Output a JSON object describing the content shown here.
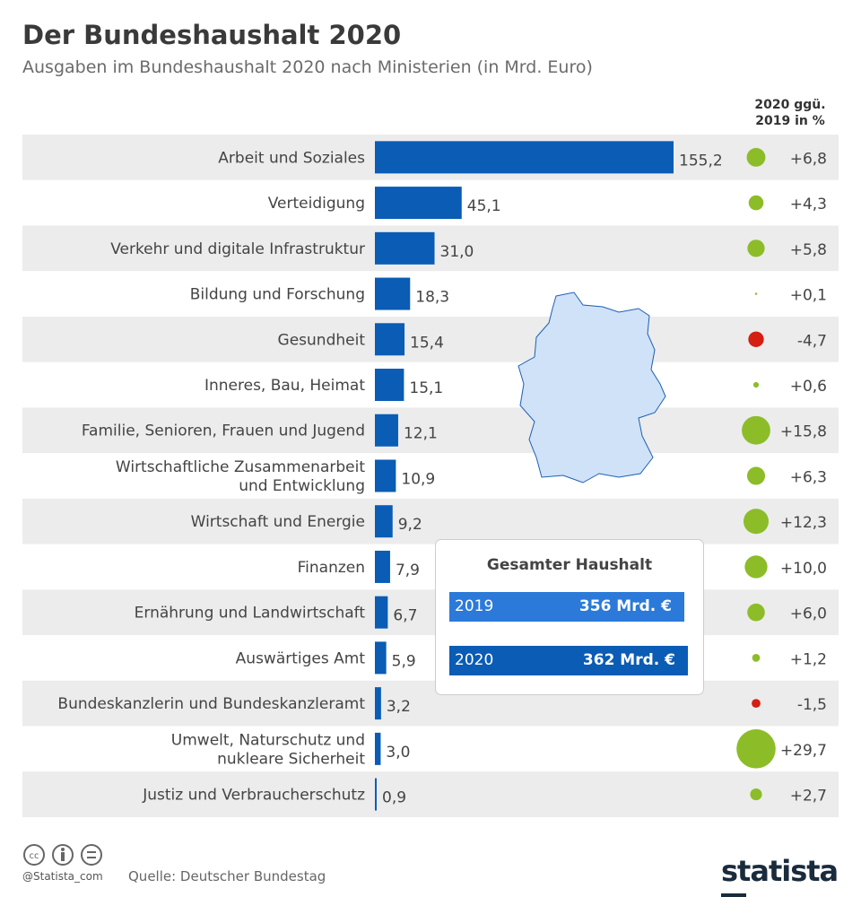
{
  "header": {
    "title": "Der Bundeshaushalt 2020",
    "subtitle": "Ausgaben im Bundeshaushalt 2020 nach Ministerien (in Mrd. Euro)",
    "change_column_line1": "2020 ggü.",
    "change_column_line2": "2019 in %"
  },
  "chart_data": {
    "type": "bar",
    "orientation": "horizontal",
    "title": "Der Bundeshaushalt 2020",
    "subtitle": "Ausgaben im Bundeshaushalt 2020 nach Ministerien (in Mrd. Euro)",
    "categories": [
      [
        "Arbeit und Soziales"
      ],
      [
        "Verteidigung"
      ],
      [
        "Verkehr und digitale Infrastruktur"
      ],
      [
        "Bildung und Forschung"
      ],
      [
        "Gesundheit"
      ],
      [
        "Inneres, Bau, Heimat"
      ],
      [
        "Familie, Senioren, Frauen und Jugend"
      ],
      [
        "Wirtschaftliche Zusammenarbeit",
        "und Entwicklung"
      ],
      [
        "Wirtschaft und Energie"
      ],
      [
        "Finanzen"
      ],
      [
        "Ernährung und Landwirtschaft"
      ],
      [
        "Auswärtiges Amt"
      ],
      [
        "Bundeskanzlerin und Bundeskanzleramt"
      ],
      [
        "Umwelt, Naturschutz und",
        "nukleare Sicherheit"
      ],
      [
        "Justiz und Verbraucherschutz"
      ]
    ],
    "values": [
      155.2,
      45.1,
      31.0,
      18.3,
      15.4,
      15.1,
      12.1,
      10.9,
      9.2,
      7.9,
      6.7,
      5.9,
      3.2,
      3.0,
      0.9
    ],
    "value_labels": [
      "155,2",
      "45,1",
      "31,0",
      "18,3",
      "15,4",
      "15,1",
      "12,1",
      "10,9",
      "9,2",
      "7,9",
      "6,7",
      "5,9",
      "3,2",
      "3,0",
      "0,9"
    ],
    "change_pct": [
      6.8,
      4.3,
      5.8,
      0.1,
      -4.7,
      0.6,
      15.8,
      6.3,
      12.3,
      10.0,
      6.0,
      1.2,
      -1.5,
      29.7,
      2.7
    ],
    "change_labels": [
      "+6,8",
      "+4,3",
      "+5,8",
      "+0,1",
      "-4,7",
      "+0,6",
      "+15,8",
      "+6,3",
      "+12,3",
      "+10,0",
      "+6,0",
      "+1,2",
      "-1,5",
      "+29,7",
      "+2,7"
    ],
    "unit": "Mrd. Euro",
    "colors": {
      "bar": "#0a5cb5",
      "positive": "#8cbd28",
      "negative": "#d41f11",
      "row_alt": "#ececec"
    }
  },
  "totals": {
    "title": "Gesamter Haushalt",
    "rows": [
      {
        "year": "2019",
        "value": "356 Mrd. €",
        "color": "#2b7ad9"
      },
      {
        "year": "2020",
        "value": "362 Mrd. €",
        "color": "#0a5cb5"
      }
    ]
  },
  "map": {
    "name": "germany-map",
    "color": "#cfe2f8"
  },
  "footer": {
    "handle": "@Statista_com",
    "source": "Quelle: Deutscher Bundestag",
    "logo": "statista"
  }
}
